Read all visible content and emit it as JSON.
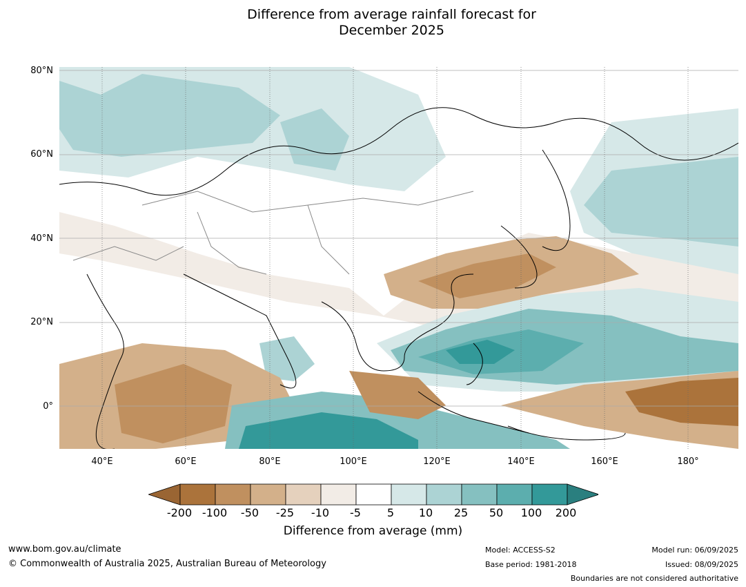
{
  "title": {
    "line1": "Difference from average rainfall forecast for",
    "line2": "December 2025"
  },
  "map": {
    "y_labels": [
      "80°N",
      "60°N",
      "40°N",
      "20°N",
      "0°"
    ],
    "x_labels": [
      "40°E",
      "60°E",
      "80°E",
      "100°E",
      "120°E",
      "140°E",
      "160°E",
      "180°"
    ]
  },
  "colorbar": {
    "ticks": [
      "-200",
      "-100",
      "-50",
      "-25",
      "-10",
      "-5",
      "5",
      "10",
      "25",
      "50",
      "100",
      "200"
    ],
    "colors": [
      "#9a6533",
      "#ab733b",
      "#c0905f",
      "#d3b08a",
      "#e5d1bd",
      "#f2ece6",
      "#ffffff",
      "#d6e8e8",
      "#acd3d4",
      "#85c0c0",
      "#5caeae",
      "#339999",
      "#2a7f7f"
    ],
    "label": "Difference from average (mm)"
  },
  "footer": {
    "url": "www.bom.gov.au/climate",
    "copyright": "© Commonwealth of Australia 2025, Australian Bureau of Meteorology",
    "model": "Model: ACCESS-S2",
    "base_period": "Base period: 1981-2018",
    "model_run": "Model run: 06/09/2025",
    "issued": "Issued: 08/09/2025",
    "disclaimer": "Boundaries are not considered authoritative"
  }
}
